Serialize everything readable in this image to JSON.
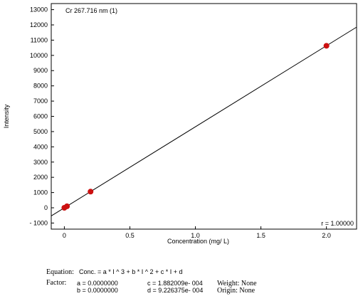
{
  "chart_data": {
    "type": "scatter",
    "title": "Cr 267.716 nm (1)",
    "xlabel": "Concentration (mg/ L)",
    "ylabel": "Intensity",
    "xlim": [
      -0.1,
      2.23
    ],
    "ylim": [
      -1400,
      13400
    ],
    "x_ticks": [
      0,
      0.5,
      1.0,
      1.5,
      2.0
    ],
    "x_tick_labels": [
      "0",
      "0.5",
      "1.0",
      "1.5",
      "2.0"
    ],
    "y_ticks": [
      -1000,
      0,
      1000,
      2000,
      3000,
      4000,
      5000,
      6000,
      7000,
      8000,
      9000,
      10000,
      11000,
      12000,
      13000
    ],
    "y_tick_labels": [
      "- 1000",
      "0",
      "1000",
      "2000",
      "3000",
      "4000",
      "5000",
      "6000",
      "7000",
      "8000",
      "9000",
      "10000",
      "11000",
      "12000",
      "13000"
    ],
    "points": {
      "x": [
        0.0,
        0.02,
        0.2,
        2.0
      ],
      "y": [
        0,
        100,
        1060,
        10630
      ]
    },
    "fit_line": {
      "x": [
        -0.1,
        2.23
      ],
      "y": [
        -532,
        11853
      ]
    },
    "annotation": "r = 1.00000",
    "colors": {
      "points": "#cc1111",
      "line": "#000000",
      "axis": "#000000"
    },
    "grid": false
  },
  "footer": {
    "equation_label": "Equation:",
    "equation_text": "Conc. = a * I ^ 3 + b * I ^ 2 + c * I + d",
    "factor_label": "Factor:",
    "a": "a = 0.0000000",
    "b": "b = 0.0000000",
    "c": "c = 1.882009e- 004",
    "d": "d = 9.226375e- 004",
    "weight": "Weight: None",
    "origin": "Origin: None"
  }
}
